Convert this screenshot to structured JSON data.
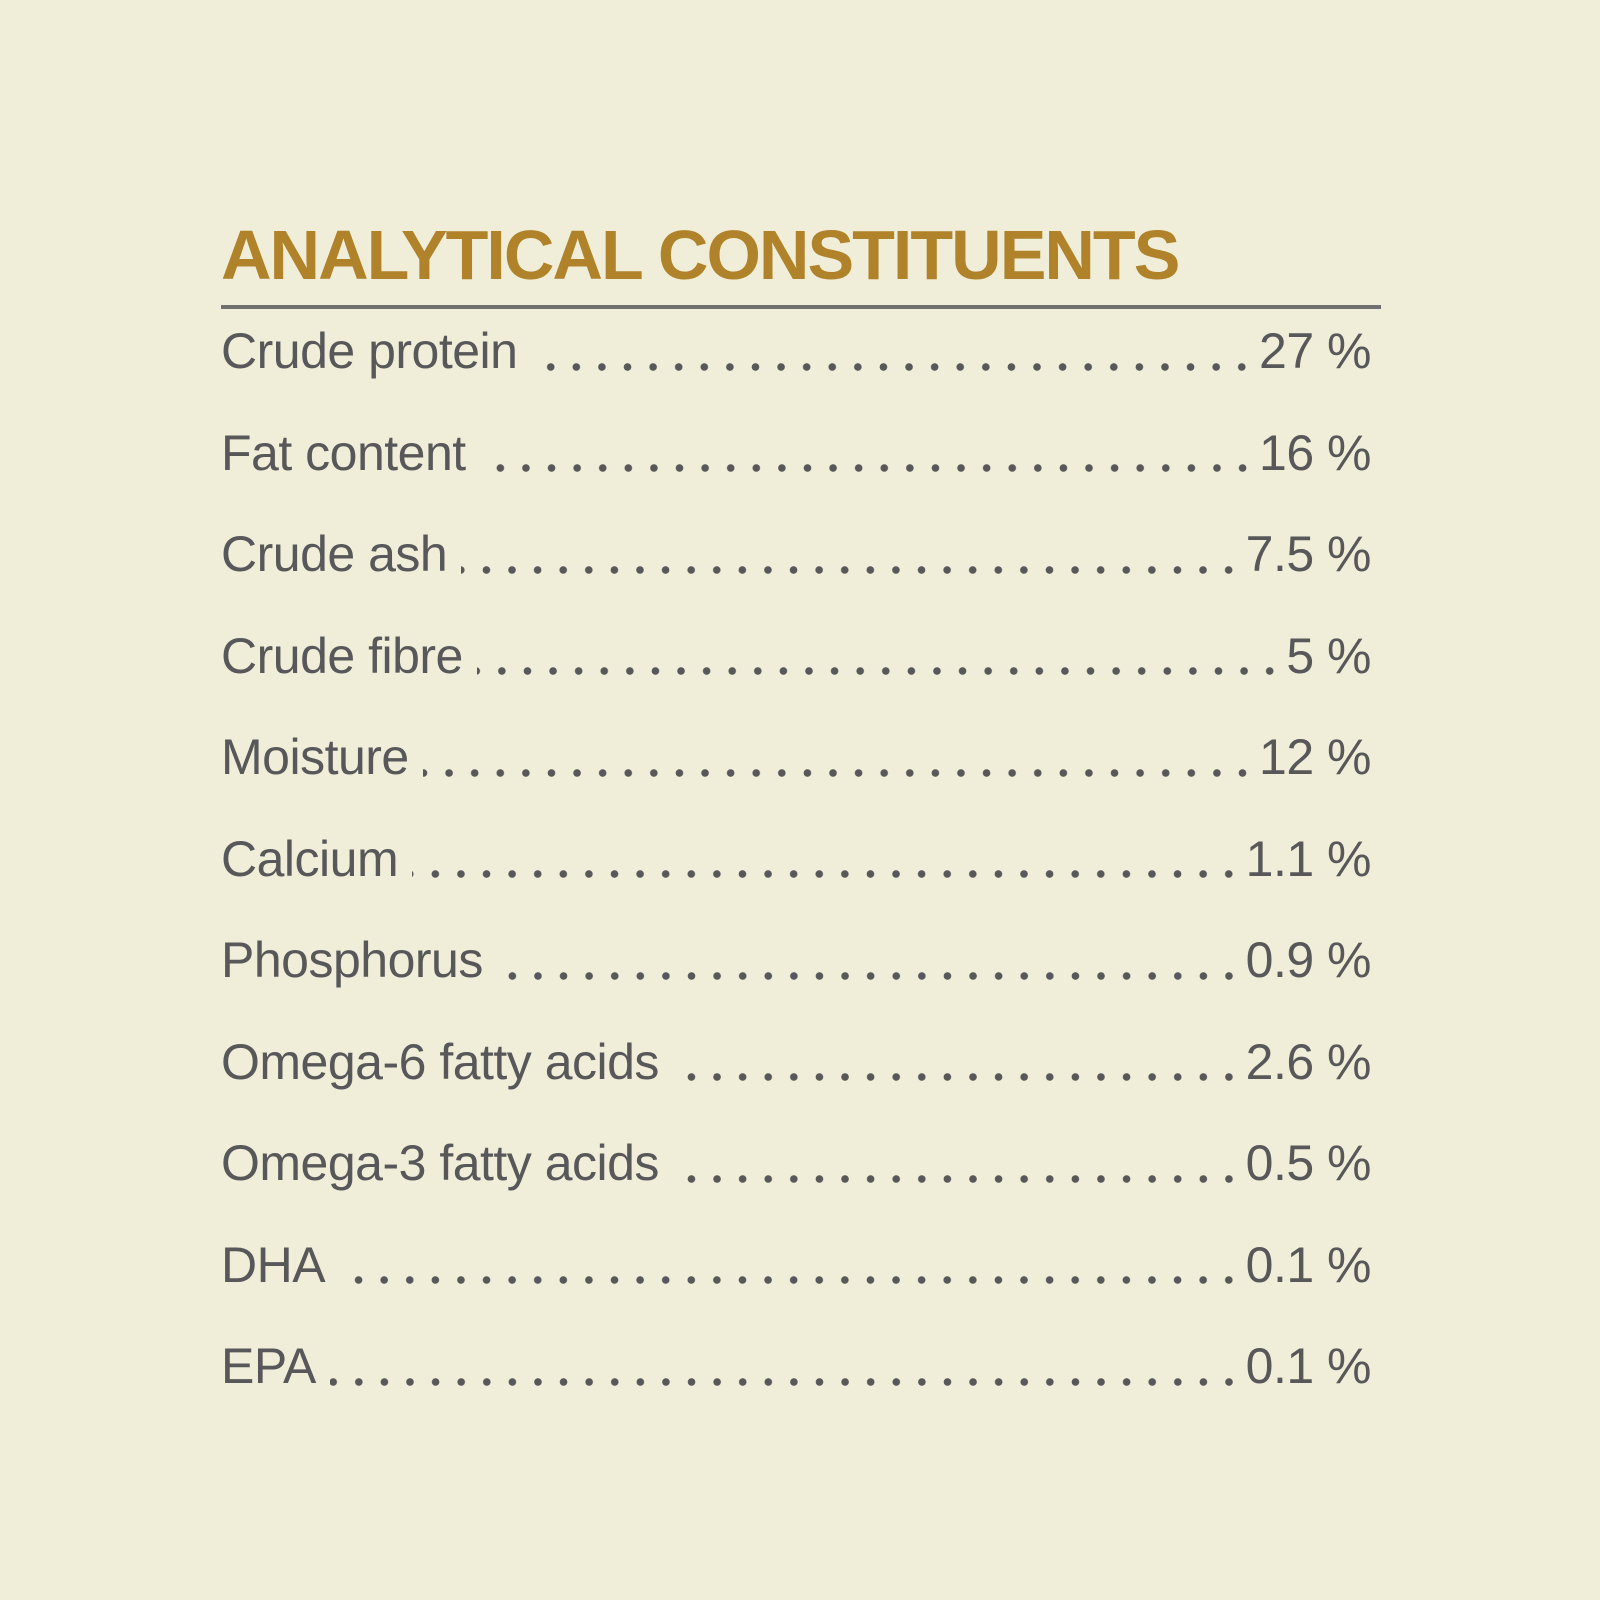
{
  "title": "ANALYTICAL CONSTITUENTS",
  "colors": {
    "title": "#B0832A",
    "text": "#58585A",
    "background": "#F0EED9",
    "rule": "#707070"
  },
  "rows": [
    {
      "label": "Crude protein",
      "value": "27 %"
    },
    {
      "label": "Fat content",
      "value": "16 %"
    },
    {
      "label": "Crude ash",
      "value": "7.5 %"
    },
    {
      "label": "Crude fibre",
      "value": "5 %"
    },
    {
      "label": "Moisture",
      "value": "12 %"
    },
    {
      "label": "Calcium",
      "value": "1.1 %"
    },
    {
      "label": "Phosphorus",
      "value": "0.9 %"
    },
    {
      "label": "Omega-6 fatty acids",
      "value": "2.6 %"
    },
    {
      "label": "Omega-3 fatty acids",
      "value": "0.5 %"
    },
    {
      "label": "DHA",
      "value": "0.1 %"
    },
    {
      "label": "EPA",
      "value": "0.1 %"
    }
  ]
}
